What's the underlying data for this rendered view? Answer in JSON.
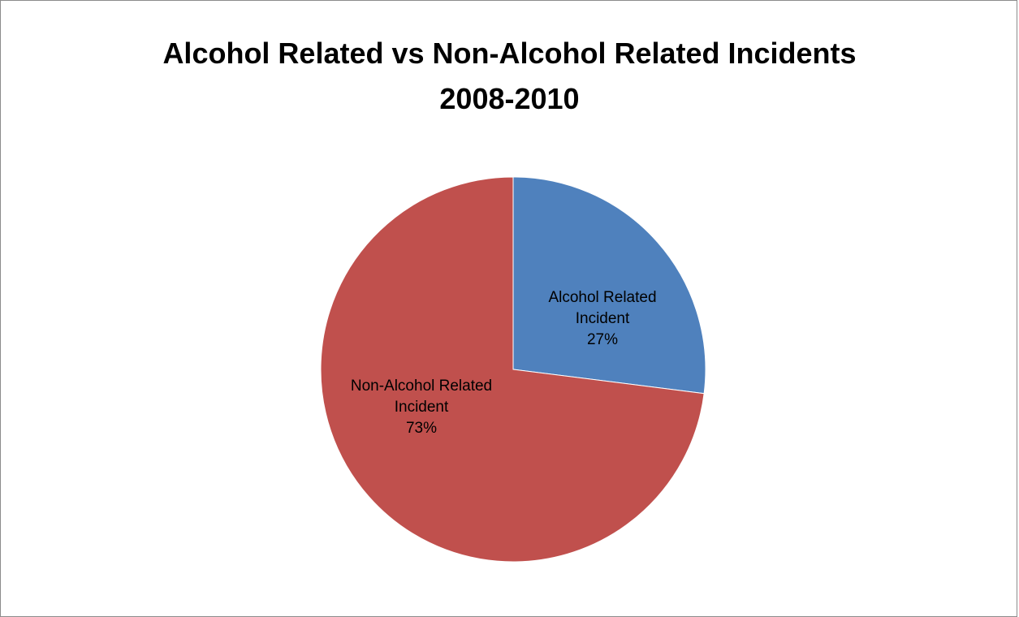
{
  "chart_data": {
    "type": "pie",
    "title": "Alcohol Related vs Non-Alcohol Related Incidents 2008-2010",
    "title_lines": [
      "Alcohol Related vs Non-Alcohol Related Incidents",
      "2008-2010"
    ],
    "slices": [
      {
        "name": "Alcohol Related Incident",
        "label_lines": [
          "Alcohol Related",
          "Incident"
        ],
        "value": 27,
        "value_label": "27%",
        "color": "#4f81bd"
      },
      {
        "name": "Non-Alcohol Related Incident",
        "label_lines": [
          "Non-Alcohol Related",
          "Incident"
        ],
        "value": 73,
        "value_label": "73%",
        "color": "#c0504d"
      }
    ],
    "start": "12 o'clock",
    "direction": "clockwise",
    "legend": "none"
  }
}
